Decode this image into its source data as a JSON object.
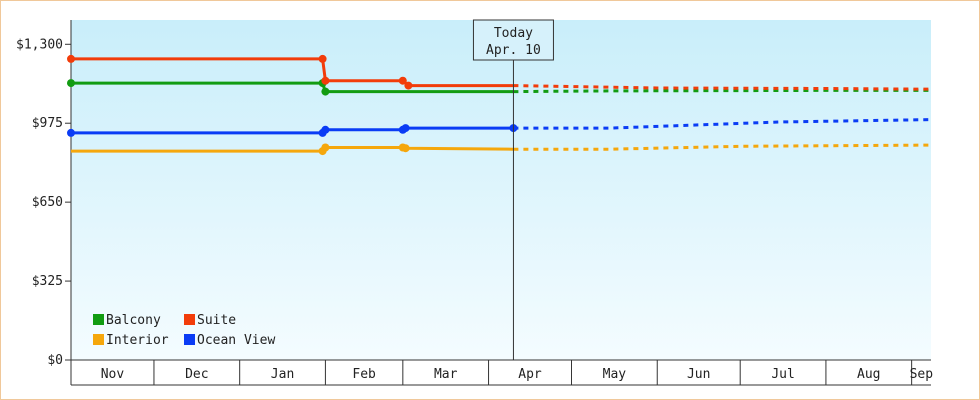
{
  "chart_data": {
    "type": "line",
    "ylim": [
      0,
      1400
    ],
    "yticks": [
      {
        "value": 0,
        "label": "$0"
      },
      {
        "value": 325,
        "label": "$325"
      },
      {
        "value": 650,
        "label": "$650"
      },
      {
        "value": 975,
        "label": "$975"
      },
      {
        "value": 1300,
        "label": "$1,300"
      }
    ],
    "months": [
      "Nov",
      "Dec",
      "Jan",
      "Feb",
      "Mar",
      "Apr",
      "May",
      "Jun",
      "Jul",
      "Aug",
      "Sep"
    ],
    "x_start": "2024-11-01",
    "x_end": "2025-09-08",
    "today": {
      "line1": "Today",
      "line2": "Apr. 10",
      "date": "2025-04-10"
    },
    "legend": [
      {
        "name": "Balcony",
        "color": "#129c12"
      },
      {
        "name": "Suite",
        "color": "#f23c0a"
      },
      {
        "name": "Interior",
        "color": "#f5a70c"
      },
      {
        "name": "Ocean View",
        "color": "#0a3cf5"
      }
    ],
    "series": [
      {
        "name": "Balcony",
        "color": "#129c12",
        "observed": [
          [
            "2024-11-01",
            1140
          ],
          [
            "2025-01-31",
            1140
          ],
          [
            "2025-02-01",
            1105
          ],
          [
            "2025-04-10",
            1105
          ]
        ],
        "markers": [
          [
            "2024-11-01",
            1140
          ],
          [
            "2025-01-31",
            1140
          ],
          [
            "2025-02-01",
            1105
          ]
        ],
        "forecast": [
          [
            "2025-04-10",
            1105
          ],
          [
            "2025-05-15",
            1108
          ],
          [
            "2025-08-01",
            1110
          ],
          [
            "2025-09-08",
            1110
          ]
        ]
      },
      {
        "name": "Suite",
        "color": "#f23c0a",
        "observed": [
          [
            "2024-11-01",
            1240
          ],
          [
            "2025-01-31",
            1240
          ],
          [
            "2025-02-01",
            1150
          ],
          [
            "2025-03-01",
            1150
          ],
          [
            "2025-03-03",
            1130
          ],
          [
            "2025-04-10",
            1130
          ]
        ],
        "markers": [
          [
            "2024-11-01",
            1240
          ],
          [
            "2025-01-31",
            1240
          ],
          [
            "2025-02-01",
            1150
          ],
          [
            "2025-03-01",
            1150
          ],
          [
            "2025-03-03",
            1130
          ]
        ],
        "forecast": [
          [
            "2025-04-10",
            1130
          ],
          [
            "2025-06-01",
            1120
          ],
          [
            "2025-08-01",
            1118
          ],
          [
            "2025-09-08",
            1115
          ]
        ]
      },
      {
        "name": "Interior",
        "color": "#f5a70c",
        "observed": [
          [
            "2024-11-01",
            860
          ],
          [
            "2025-01-31",
            860
          ],
          [
            "2025-02-01",
            875
          ],
          [
            "2025-03-01",
            875
          ],
          [
            "2025-03-02",
            872
          ],
          [
            "2025-04-10",
            868
          ]
        ],
        "markers": [
          [
            "2025-01-31",
            860
          ],
          [
            "2025-02-01",
            875
          ],
          [
            "2025-03-01",
            875
          ],
          [
            "2025-03-02",
            872
          ]
        ],
        "forecast": [
          [
            "2025-04-10",
            868
          ],
          [
            "2025-05-15",
            868
          ],
          [
            "2025-07-01",
            880
          ],
          [
            "2025-09-08",
            885
          ]
        ]
      },
      {
        "name": "Ocean View",
        "color": "#0a3cf5",
        "observed": [
          [
            "2024-11-01",
            935
          ],
          [
            "2025-01-31",
            935
          ],
          [
            "2025-02-01",
            948
          ],
          [
            "2025-03-01",
            948
          ],
          [
            "2025-03-02",
            955
          ],
          [
            "2025-04-10",
            955
          ]
        ],
        "markers": [
          [
            "2024-11-01",
            935
          ],
          [
            "2025-01-31",
            935
          ],
          [
            "2025-02-01",
            948
          ],
          [
            "2025-03-01",
            948
          ],
          [
            "2025-03-02",
            955
          ],
          [
            "2025-04-10",
            955
          ]
        ],
        "forecast": [
          [
            "2025-04-10",
            955
          ],
          [
            "2025-05-15",
            955
          ],
          [
            "2025-07-15",
            980
          ],
          [
            "2025-09-08",
            990
          ]
        ]
      }
    ]
  }
}
